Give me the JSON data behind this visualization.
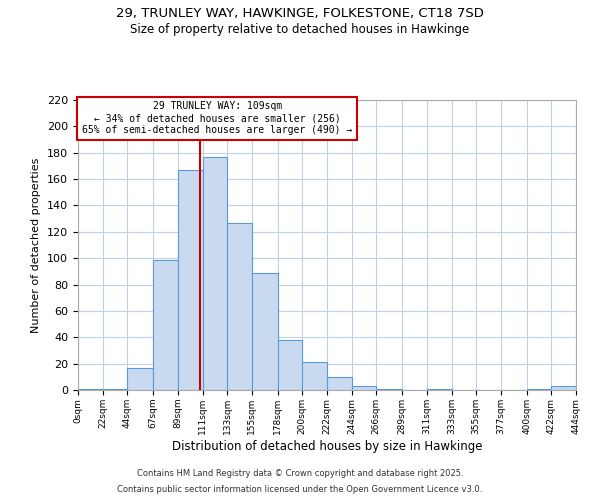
{
  "title": "29, TRUNLEY WAY, HAWKINGE, FOLKESTONE, CT18 7SD",
  "subtitle": "Size of property relative to detached houses in Hawkinge",
  "xlabel": "Distribution of detached houses by size in Hawkinge",
  "ylabel": "Number of detached properties",
  "bin_edges": [
    0,
    22,
    44,
    67,
    89,
    111,
    133,
    155,
    178,
    200,
    222,
    244,
    266,
    289,
    311,
    333,
    355,
    377,
    400,
    422,
    444
  ],
  "bin_labels": [
    "0sqm",
    "22sqm",
    "44sqm",
    "67sqm",
    "89sqm",
    "111sqm",
    "133sqm",
    "155sqm",
    "178sqm",
    "200sqm",
    "222sqm",
    "244sqm",
    "266sqm",
    "289sqm",
    "311sqm",
    "333sqm",
    "355sqm",
    "377sqm",
    "400sqm",
    "422sqm",
    "444sqm"
  ],
  "counts": [
    1,
    1,
    17,
    99,
    167,
    177,
    127,
    89,
    38,
    21,
    10,
    3,
    1,
    0,
    1,
    0,
    0,
    0,
    1,
    3
  ],
  "bar_facecolor": "#c9d9f0",
  "bar_edgecolor": "#5b9bd5",
  "grid_color": "#c0d0e8",
  "property_line_x": 109,
  "property_line_color": "#cc0000",
  "annotation_title": "29 TRUNLEY WAY: 109sqm",
  "annotation_line1": "← 34% of detached houses are smaller (256)",
  "annotation_line2": "65% of semi-detached houses are larger (490) →",
  "annotation_box_edgecolor": "#cc0000",
  "ylim": [
    0,
    220
  ],
  "yticks": [
    0,
    20,
    40,
    60,
    80,
    100,
    120,
    140,
    160,
    180,
    200,
    220
  ],
  "footer1": "Contains HM Land Registry data © Crown copyright and database right 2025.",
  "footer2": "Contains public sector information licensed under the Open Government Licence v3.0.",
  "background_color": "#ffffff"
}
